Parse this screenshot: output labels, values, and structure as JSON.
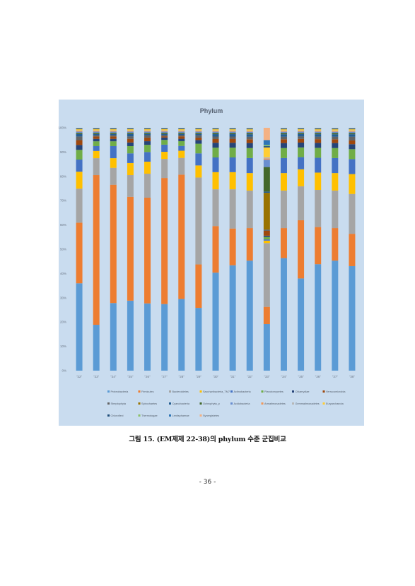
{
  "caption": "그림 15. (EM제제 22-38)의 phylum 수준 군집비교",
  "page_number": "- 36 -",
  "chart_data": {
    "type": "bar",
    "stacked": true,
    "percent": true,
    "title": "Phylum",
    "xlabel": "",
    "ylabel": "",
    "ylim": [
      0,
      100
    ],
    "yticks": [
      "0%",
      "10%",
      "20%",
      "30%",
      "40%",
      "50%",
      "60%",
      "70%",
      "80%",
      "90%",
      "100%"
    ],
    "grid": false,
    "legend_position": "bottom",
    "categories": [
      "\"22\"",
      "\"23\"",
      "\"24\"",
      "\"25\"",
      "\"26\"",
      "\"27\"",
      "\"28\"",
      "\"29\"",
      "\"30\"",
      "\"31\"",
      "\"32\"",
      "\"33\"",
      "\"34\"",
      "\"35\"",
      "\"36\"",
      "\"37\"",
      "\"38\""
    ],
    "series": [
      {
        "name": "Proteobacteria",
        "color": "#5b9bd5",
        "values": [
          36,
          19,
          28,
          29,
          28,
          28,
          30,
          26,
          40,
          43,
          44,
          19,
          45,
          38,
          43,
          44,
          42
        ]
      },
      {
        "name": "Firmicutes",
        "color": "#ed7d31",
        "values": [
          25,
          62,
          49,
          43,
          44,
          53,
          52,
          18,
          19,
          15,
          13,
          7,
          12,
          24,
          15,
          13,
          13
        ]
      },
      {
        "name": "Bacteroidetes",
        "color": "#a5a5a5",
        "values": [
          14,
          7,
          7,
          9,
          10,
          8,
          7,
          36,
          15,
          16,
          15,
          26,
          15,
          14,
          15,
          15,
          16
        ]
      },
      {
        "name": "Saccharibacteria_TM7",
        "color": "#ffc000",
        "values": [
          7,
          3,
          4,
          5,
          5,
          3,
          3,
          5,
          7,
          7,
          7,
          1,
          7,
          7,
          7,
          7,
          8
        ]
      },
      {
        "name": "Actinobacteria",
        "color": "#4472c4",
        "values": [
          5,
          2,
          5,
          4,
          4,
          3,
          2,
          5,
          6,
          6,
          6,
          0.5,
          6,
          5,
          6,
          6,
          6
        ]
      },
      {
        "name": "Planctomycetes",
        "color": "#70ad47",
        "values": [
          4,
          2,
          2,
          3,
          3,
          2,
          2,
          4,
          4,
          4,
          4,
          1,
          4,
          4,
          4,
          4,
          4
        ]
      },
      {
        "name": "Chlamydiae",
        "color": "#264478",
        "values": [
          2,
          1,
          1,
          1.5,
          1.5,
          1,
          1,
          1.5,
          2,
          2,
          2,
          0.5,
          2,
          2,
          2,
          2,
          2
        ]
      },
      {
        "name": "Verrucomicrobia",
        "color": "#9e480e",
        "values": [
          2,
          1,
          1,
          1.5,
          1.5,
          0.5,
          1,
          1,
          1.5,
          1.5,
          1.5,
          2,
          1.5,
          1.5,
          1.5,
          1.5,
          1.5
        ]
      },
      {
        "name": "Streptophyta",
        "color": "#636363",
        "values": [
          1.5,
          0.5,
          0.5,
          1,
          1,
          0.5,
          0.5,
          1,
          1,
          1,
          1,
          0.5,
          1,
          1,
          1,
          1,
          1.5
        ]
      },
      {
        "name": "Spirochaetes",
        "color": "#997300",
        "values": [
          0,
          0,
          0,
          0,
          0,
          0,
          0,
          0,
          0,
          0,
          0,
          15,
          0,
          0,
          0,
          0,
          0
        ]
      },
      {
        "name": "Cyanobacteria",
        "color": "#255e91",
        "values": [
          1,
          0.5,
          0.5,
          1,
          0.5,
          0.5,
          0.5,
          0.5,
          1,
          1,
          1,
          0.5,
          1,
          1,
          1,
          1,
          1
        ]
      },
      {
        "name": "Ochrophyta_p",
        "color": "#43682b",
        "values": [
          0.5,
          0.5,
          0.5,
          0.5,
          0.5,
          0.5,
          0.5,
          0.5,
          0.5,
          0.5,
          0.5,
          10,
          0.5,
          0.5,
          0.5,
          0.5,
          0.5
        ]
      },
      {
        "name": "Acidobacteria",
        "color": "#698ed0",
        "values": [
          0.5,
          0.5,
          0.5,
          0.5,
          0.5,
          0.5,
          0.5,
          0.5,
          0.5,
          0.5,
          0.5,
          3,
          0.5,
          0.5,
          0.5,
          0.5,
          0.5
        ]
      },
      {
        "name": "Armatimonadetes",
        "color": "#f1975a",
        "values": [
          0.3,
          0.3,
          0.3,
          0.3,
          0.3,
          0.3,
          0.3,
          0.3,
          0.3,
          0.3,
          0.3,
          0.5,
          0.3,
          0.3,
          0.3,
          0.3,
          0.3
        ]
      },
      {
        "name": "Gemmatimonadetes",
        "color": "#b7b7b7",
        "values": [
          0.2,
          0.2,
          0.2,
          0.2,
          0.2,
          0.2,
          0.2,
          0.2,
          0.2,
          0.2,
          0.2,
          0.5,
          0.2,
          0.2,
          0.2,
          0.2,
          0.2
        ]
      },
      {
        "name": "Euryarchaeota",
        "color": "#ffcd33",
        "values": [
          0.5,
          0.5,
          0.5,
          0.5,
          0.5,
          0.5,
          0.5,
          0.5,
          0.5,
          0.5,
          0.5,
          4,
          0.5,
          0.5,
          0.5,
          0.5,
          0.5
        ]
      },
      {
        "name": "Chloroflexi",
        "color": "#1f4e79",
        "values": [
          0.3,
          0.3,
          0.3,
          0.3,
          0.3,
          0.3,
          0.3,
          0.3,
          0.3,
          0.3,
          0.3,
          0.5,
          0.3,
          0.3,
          0.3,
          0.3,
          0.3
        ]
      },
      {
        "name": "Thermotogae",
        "color": "#8cc168",
        "values": [
          0.1,
          0.1,
          0.1,
          0.1,
          0.1,
          0.1,
          0.1,
          0.1,
          0.1,
          0.1,
          0.1,
          0.5,
          0.1,
          0.1,
          0.1,
          0.1,
          0.1
        ]
      },
      {
        "name": "Lentisphaerae",
        "color": "#2e75b6",
        "values": [
          0.1,
          0.1,
          0.1,
          0.1,
          0.1,
          0.1,
          0.1,
          0.1,
          0.1,
          0.1,
          0.1,
          2,
          0.1,
          0.1,
          0.1,
          0.1,
          0.1
        ]
      },
      {
        "name": "Synergistetes",
        "color": "#f4b183",
        "values": [
          0.1,
          0.1,
          0.1,
          0.1,
          0.1,
          0.1,
          0.1,
          0.1,
          0.1,
          0.1,
          0.1,
          5,
          0.1,
          0.1,
          0.1,
          0.1,
          0.1
        ]
      }
    ]
  }
}
